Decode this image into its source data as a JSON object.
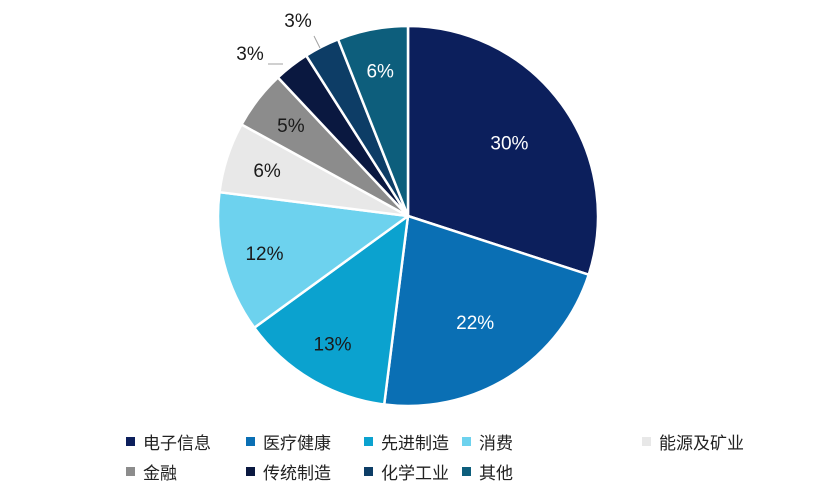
{
  "chart_data": {
    "type": "pie",
    "title": "",
    "start_angle_deg": 0,
    "direction": "clockwise",
    "categories": [
      "电子信息",
      "医疗健康",
      "先进制造",
      "消费",
      "能源及矿业",
      "金融",
      "传统制造",
      "化学工业",
      "其他"
    ],
    "values": [
      30,
      22,
      13,
      12,
      6,
      5,
      3,
      3,
      6
    ],
    "labels": [
      "30%",
      "22%",
      "13%",
      "12%",
      "6%",
      "5%",
      "3%",
      "3%",
      "6%"
    ],
    "colors": [
      "#0c1f5c",
      "#0a6fb4",
      "#0ba2cf",
      "#6dd2ee",
      "#e8e8e8",
      "#8c8c8c",
      "#0a1840",
      "#0d3d66",
      "#0d5e7c"
    ],
    "label_colors": [
      "#ffffff",
      "#ffffff",
      "#1a1a1a",
      "#1a1a1a",
      "#1a1a1a",
      "#1a1a1a",
      "#1a1a1a",
      "#1a1a1a",
      "#ffffff"
    ],
    "legend_position": "bottom"
  },
  "legend": {
    "rows": [
      [
        {
          "label": "电子信息",
          "color": "#0c1f5c"
        },
        {
          "label": "医疗健康",
          "color": "#0a6fb4"
        },
        {
          "label": "先进制造",
          "color": "#0ba2cf"
        },
        {
          "label": "消费",
          "color": "#6dd2ee"
        },
        {
          "label": "能源及矿业",
          "color": "#e8e8e8"
        }
      ],
      [
        {
          "label": "金融",
          "color": "#8c8c8c"
        },
        {
          "label": "传统制造",
          "color": "#0a1840"
        },
        {
          "label": "化学工业",
          "color": "#0d3d66"
        },
        {
          "label": "其他",
          "color": "#0d5e7c"
        }
      ]
    ]
  }
}
